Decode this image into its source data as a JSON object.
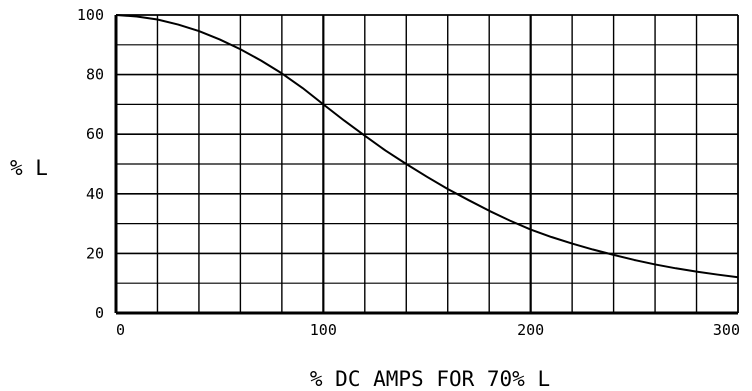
{
  "chart_data": {
    "type": "line",
    "xlabel": "% DC AMPS FOR 70% L",
    "ylabel": "% L",
    "xlim": [
      0,
      300
    ],
    "ylim": [
      0,
      100
    ],
    "x_ticks": [
      0,
      100,
      200,
      300
    ],
    "y_ticks": [
      0,
      20,
      40,
      60,
      80,
      100
    ],
    "minor_x_step": 20,
    "minor_y_step": 10,
    "grid": true,
    "series": [
      {
        "x": [
          0,
          10,
          20,
          30,
          40,
          50,
          60,
          70,
          80,
          90,
          100,
          110,
          120,
          130,
          140,
          150,
          160,
          170,
          180,
          190,
          200,
          210,
          220,
          230,
          240,
          250,
          260,
          270,
          280,
          290,
          300
        ],
        "y": [
          100,
          99.5,
          98.5,
          96.8,
          94.6,
          91.8,
          88.5,
          84.7,
          80.4,
          75.5,
          70,
          64.6,
          59.5,
          54.5,
          50,
          45.7,
          41.6,
          37.9,
          34.3,
          31,
          28,
          25.5,
          23.3,
          21.3,
          19.5,
          17.8,
          16.3,
          15,
          13.9,
          12.9,
          12
        ]
      }
    ],
    "colors": {
      "line": "#000000",
      "grid": "#000000",
      "background": "#ffffff"
    }
  }
}
